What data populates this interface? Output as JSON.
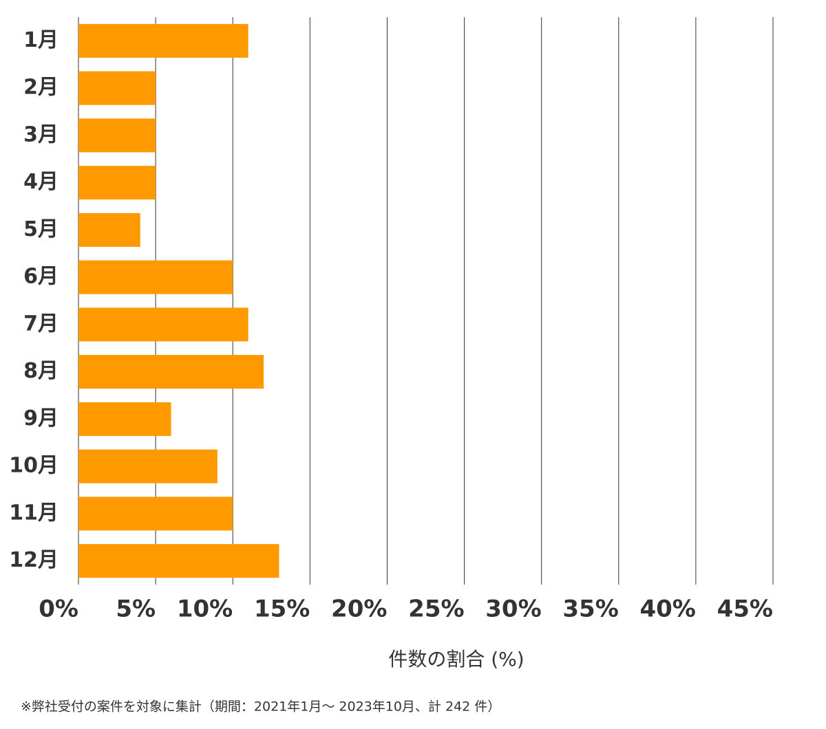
{
  "chart_data": {
    "type": "bar",
    "orientation": "horizontal",
    "categories": [
      "1月",
      "2月",
      "3月",
      "4月",
      "5月",
      "6月",
      "7月",
      "8月",
      "9月",
      "10月",
      "11月",
      "12月"
    ],
    "values": [
      11,
      5,
      5,
      5,
      4,
      10,
      11,
      12,
      6,
      9,
      10,
      13
    ],
    "color": "#ff9900",
    "xlabel": "件数の割合 (%)",
    "note": "※弊社受付の案件を対象に集計（期間：2021年1月～ 2023年10月、計 242 件）",
    "xlim": [
      0,
      45
    ],
    "xticks": [
      {
        "value": 0,
        "label": "0%"
      },
      {
        "value": 5,
        "label": "5%"
      },
      {
        "value": 10,
        "label": "10%"
      },
      {
        "value": 15,
        "label": "15%"
      },
      {
        "value": 20,
        "label": "20%"
      },
      {
        "value": 25,
        "label": "25%"
      },
      {
        "value": 30,
        "label": "30%"
      },
      {
        "value": 35,
        "label": "35%"
      },
      {
        "value": 40,
        "label": "40%"
      },
      {
        "value": 45,
        "label": "45%"
      }
    ],
    "grid": true
  }
}
